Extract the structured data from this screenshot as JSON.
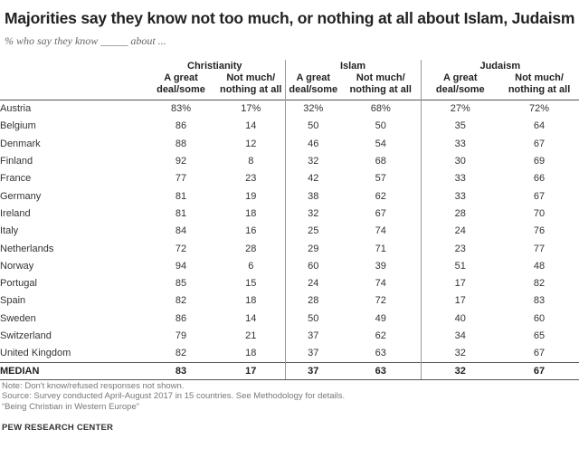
{
  "title": "Majorities say they know not too much, or nothing at all about Islam, Judaism",
  "subtitle": "% who say they know _____ about ...",
  "chart_data": {
    "type": "table",
    "groups": [
      "Christianity",
      "Islam",
      "Judaism"
    ],
    "subheaders": [
      [
        "A great",
        "deal/some"
      ],
      [
        "Not much/",
        "nothing at all"
      ]
    ],
    "rows": [
      {
        "country": "Austria",
        "values": [
          "83%",
          "17%",
          "32%",
          "68%",
          "27%",
          "72%"
        ]
      },
      {
        "country": "Belgium",
        "values": [
          "86",
          "14",
          "50",
          "50",
          "35",
          "64"
        ]
      },
      {
        "country": "Denmark",
        "values": [
          "88",
          "12",
          "46",
          "54",
          "33",
          "67"
        ]
      },
      {
        "country": "Finland",
        "values": [
          "92",
          "8",
          "32",
          "68",
          "30",
          "69"
        ]
      },
      {
        "country": "France",
        "values": [
          "77",
          "23",
          "42",
          "57",
          "33",
          "66"
        ]
      },
      {
        "country": "Germany",
        "values": [
          "81",
          "19",
          "38",
          "62",
          "33",
          "67"
        ]
      },
      {
        "country": "Ireland",
        "values": [
          "81",
          "18",
          "32",
          "67",
          "28",
          "70"
        ]
      },
      {
        "country": "Italy",
        "values": [
          "84",
          "16",
          "25",
          "74",
          "24",
          "76"
        ]
      },
      {
        "country": "Netherlands",
        "values": [
          "72",
          "28",
          "29",
          "71",
          "23",
          "77"
        ]
      },
      {
        "country": "Norway",
        "values": [
          "94",
          "6",
          "60",
          "39",
          "51",
          "48"
        ]
      },
      {
        "country": "Portugal",
        "values": [
          "85",
          "15",
          "24",
          "74",
          "17",
          "82"
        ]
      },
      {
        "country": "Spain",
        "values": [
          "82",
          "18",
          "28",
          "72",
          "17",
          "83"
        ]
      },
      {
        "country": "Sweden",
        "values": [
          "86",
          "14",
          "50",
          "49",
          "40",
          "60"
        ]
      },
      {
        "country": "Switzerland",
        "values": [
          "79",
          "21",
          "37",
          "62",
          "34",
          "65"
        ]
      },
      {
        "country": "United Kingdom",
        "values": [
          "82",
          "18",
          "37",
          "63",
          "32",
          "67"
        ]
      }
    ],
    "median": {
      "label": "MEDIAN",
      "values": [
        "83",
        "17",
        "37",
        "63",
        "32",
        "67"
      ]
    }
  },
  "notes": [
    "Note: Don't know/refused responses not shown.",
    "Source: Survey conducted April-August 2017 in 15 countries. See Methodology for details.",
    "“Being Christian in Western Europe”"
  ],
  "brand": "PEW RESEARCH CENTER"
}
